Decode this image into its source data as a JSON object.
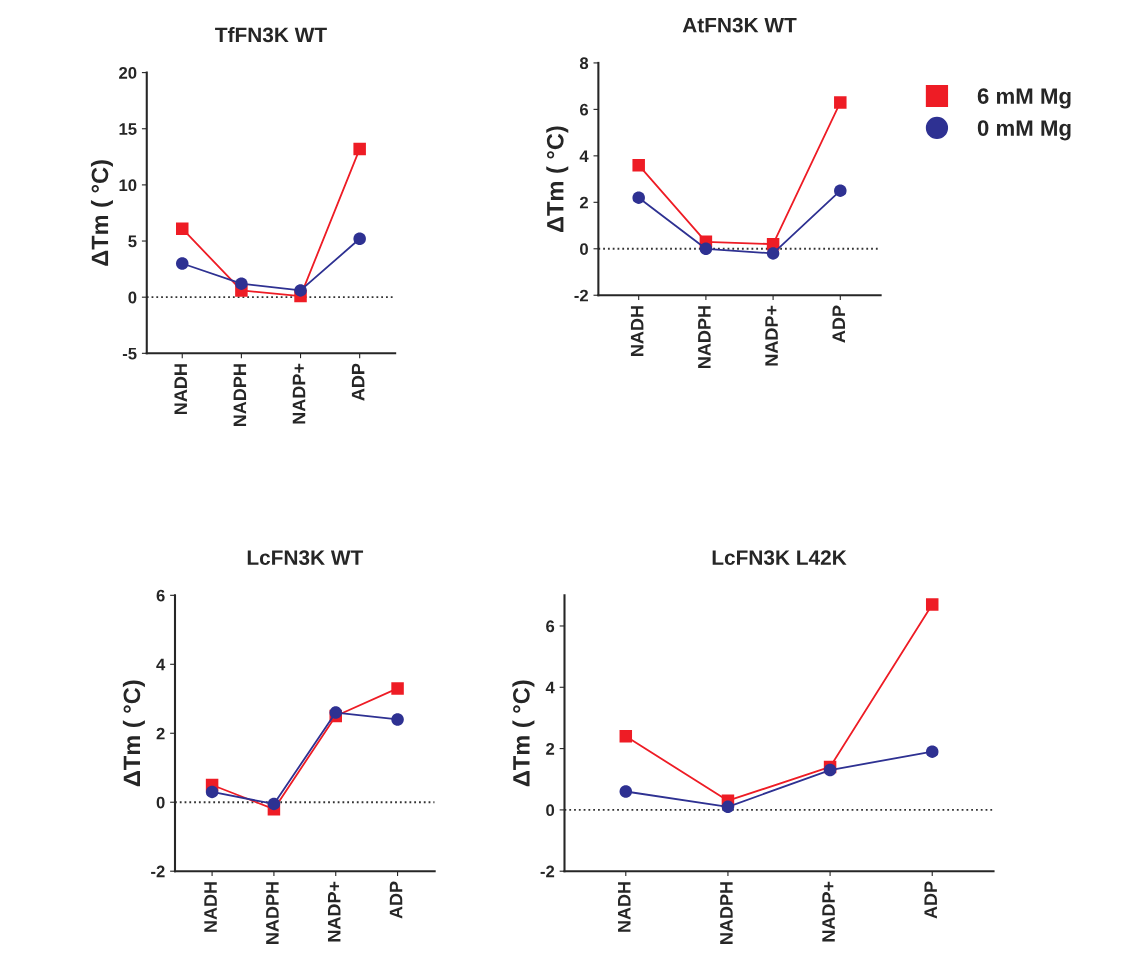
{
  "chart_data": [
    {
      "type": "line",
      "title": "TfFN3K WT",
      "ylabel": "ΔTm ( °C)",
      "categories": [
        "NADH",
        "NADPH",
        "NADP+",
        "ADP"
      ],
      "ylim": [
        -5,
        20
      ],
      "yticks": [
        -5,
        0,
        5,
        10,
        15,
        20
      ],
      "grid": false,
      "legend": false,
      "ref_lines": [
        {
          "axis": "y",
          "value": 0,
          "line_style": "dotted",
          "color": "#333333"
        }
      ],
      "series": [
        {
          "color": "#ee1c25",
          "marker": "square",
          "values": [
            6.1,
            0.6,
            0.1,
            13.2
          ]
        },
        {
          "color": "#2e3192",
          "marker": "circle",
          "values": [
            3.0,
            1.2,
            0.6,
            5.2
          ]
        }
      ]
    },
    {
      "type": "line",
      "title": "AtFN3K WT",
      "ylabel": "ΔTm ( °C)",
      "categories": [
        "NADH",
        "NADPH",
        "NADP+",
        "ADP"
      ],
      "ylim": [
        -2,
        8
      ],
      "yticks": [
        -2,
        0,
        2,
        4,
        6,
        8
      ],
      "grid": false,
      "legend": "right",
      "ref_lines": [
        {
          "axis": "y",
          "value": 0,
          "line_style": "dotted",
          "color": "#333333"
        }
      ],
      "series": [
        {
          "name": "6 mM Mg",
          "color": "#ee1c25",
          "marker": "square",
          "values": [
            3.6,
            0.3,
            0.2,
            6.3
          ]
        },
        {
          "name": "0 mM Mg",
          "color": "#2e3192",
          "marker": "circle",
          "values": [
            2.2,
            0.0,
            -0.2,
            2.5
          ]
        }
      ]
    },
    {
      "type": "line",
      "title": "LcFN3K WT",
      "ylabel": "ΔTm ( °C)",
      "categories": [
        "NADH",
        "NADPH",
        "NADP+",
        "ADP"
      ],
      "ylim": [
        -2,
        6
      ],
      "yticks": [
        -2,
        0,
        2,
        4,
        6
      ],
      "grid": false,
      "legend": false,
      "ref_lines": [
        {
          "axis": "y",
          "value": 0,
          "line_style": "dotted",
          "color": "#333333"
        }
      ],
      "series": [
        {
          "color": "#ee1c25",
          "marker": "square",
          "values": [
            0.5,
            -0.2,
            2.5,
            3.3
          ]
        },
        {
          "color": "#2e3192",
          "marker": "circle",
          "values": [
            0.3,
            -0.05,
            2.6,
            2.4
          ]
        }
      ]
    },
    {
      "type": "line",
      "title": "LcFN3K L42K",
      "ylabel": "ΔTm ( °C)",
      "categories": [
        "NADH",
        "NADPH",
        "NADP+",
        "ADP"
      ],
      "ylim": [
        -2,
        7
      ],
      "yticks": [
        -2,
        0,
        2,
        4,
        6
      ],
      "grid": false,
      "legend": false,
      "ref_lines": [
        {
          "axis": "y",
          "value": 0,
          "line_style": "dotted",
          "color": "#333333"
        }
      ],
      "series": [
        {
          "color": "#ee1c25",
          "marker": "square",
          "values": [
            2.4,
            0.3,
            1.4,
            6.7
          ]
        },
        {
          "color": "#2e3192",
          "marker": "circle",
          "values": [
            0.6,
            0.1,
            1.3,
            1.9
          ]
        }
      ]
    }
  ]
}
